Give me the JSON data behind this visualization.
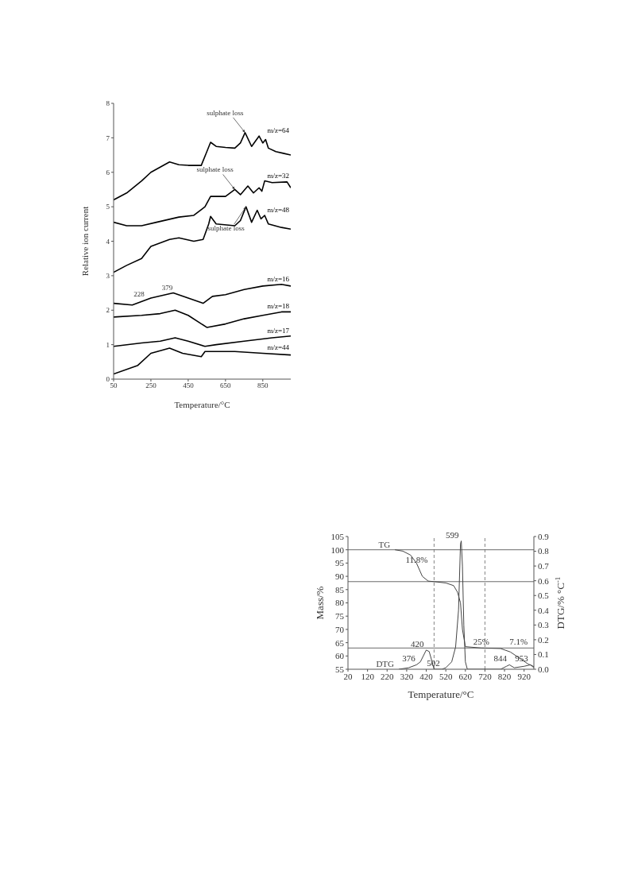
{
  "chart_data": [
    {
      "type": "line",
      "xlabel": "Temperature/°C",
      "ylabel": "Relative ion current",
      "xlim": [
        50,
        1000
      ],
      "ylim": [
        0,
        8
      ],
      "xticks": [
        50,
        250,
        450,
        650,
        850
      ],
      "yticks": [
        0,
        1,
        2,
        3,
        4,
        5,
        6,
        7,
        8
      ],
      "marker": "none",
      "line_style": "solid",
      "series": [
        {
          "name": "m/z=64",
          "color": "#000000",
          "x": [
            50,
            120,
            200,
            250,
            300,
            350,
            400,
            450,
            520,
            550,
            570,
            600,
            650,
            700,
            730,
            755,
            790,
            830,
            850,
            865,
            880,
            920,
            960,
            1000
          ],
          "values": [
            5.2,
            5.4,
            5.75,
            6.0,
            6.15,
            6.3,
            6.22,
            6.2,
            6.2,
            6.6,
            6.87,
            6.75,
            6.72,
            6.7,
            6.85,
            7.15,
            6.75,
            7.05,
            6.85,
            6.95,
            6.7,
            6.6,
            6.55,
            6.5
          ]
        },
        {
          "name": "m/z=32",
          "color": "#000000",
          "x": [
            50,
            120,
            200,
            280,
            400,
            480,
            540,
            570,
            650,
            700,
            730,
            770,
            800,
            830,
            845,
            860,
            900,
            980,
            1000
          ],
          "values": [
            4.55,
            4.45,
            4.45,
            4.55,
            4.7,
            4.75,
            5.0,
            5.3,
            5.3,
            5.5,
            5.35,
            5.6,
            5.4,
            5.55,
            5.45,
            5.75,
            5.7,
            5.72,
            5.55
          ]
        },
        {
          "name": "m/z=48",
          "color": "#000000",
          "x": [
            50,
            120,
            200,
            250,
            350,
            400,
            480,
            530,
            560,
            570,
            600,
            700,
            730,
            760,
            790,
            820,
            840,
            860,
            880,
            950,
            1000
          ],
          "values": [
            3.1,
            3.3,
            3.5,
            3.85,
            4.05,
            4.1,
            4.0,
            4.05,
            4.5,
            4.72,
            4.5,
            4.45,
            4.6,
            5.0,
            4.55,
            4.9,
            4.65,
            4.75,
            4.5,
            4.4,
            4.35
          ]
        },
        {
          "name": "m/z=16",
          "color": "#000000",
          "x": [
            50,
            150,
            250,
            370,
            450,
            530,
            580,
            650,
            750,
            850,
            950,
            1000
          ],
          "values": [
            2.2,
            2.15,
            2.35,
            2.5,
            2.35,
            2.2,
            2.4,
            2.45,
            2.6,
            2.7,
            2.75,
            2.7
          ]
        },
        {
          "name": "m/z=18",
          "color": "#000000",
          "x": [
            50,
            200,
            300,
            380,
            450,
            550,
            650,
            750,
            850,
            950,
            1000
          ],
          "values": [
            1.8,
            1.85,
            1.9,
            2.0,
            1.85,
            1.5,
            1.6,
            1.75,
            1.85,
            1.95,
            1.95
          ]
        },
        {
          "name": "m/z=17",
          "color": "#000000",
          "x": [
            50,
            200,
            300,
            380,
            450,
            540,
            600,
            750,
            900,
            1000
          ],
          "values": [
            0.95,
            1.05,
            1.1,
            1.2,
            1.1,
            0.95,
            1.0,
            1.1,
            1.2,
            1.25
          ]
        },
        {
          "name": "m/z=44",
          "color": "#000000",
          "x": [
            50,
            180,
            250,
            350,
            420,
            520,
            540,
            700,
            850,
            1000
          ],
          "values": [
            0.15,
            0.4,
            0.75,
            0.9,
            0.75,
            0.65,
            0.8,
            0.8,
            0.75,
            0.7
          ]
        }
      ],
      "annotations": [
        {
          "text": "sulphate loss",
          "x": 755,
          "y": 7.15
        },
        {
          "text": "sulphate loss",
          "x": 760,
          "y": 5.0
        },
        {
          "text": "sulphate loss",
          "x": 700,
          "y": 5.5
        },
        {
          "text": "228",
          "x": 228,
          "y": 2.3
        },
        {
          "text": "379",
          "x": 379,
          "y": 2.5
        }
      ]
    },
    {
      "type": "line",
      "xlabel": "Temperature/°C",
      "ylabel": "Mass/%",
      "y2label": "DTG/% °C$^{-1}$",
      "xlim": [
        20,
        970
      ],
      "ylim": [
        55,
        105
      ],
      "y2lim": [
        0,
        0.9
      ],
      "xticks": [
        20,
        120,
        220,
        320,
        420,
        520,
        620,
        720,
        820,
        920
      ],
      "yticks": [
        55,
        60,
        65,
        70,
        75,
        80,
        85,
        90,
        95,
        100,
        105
      ],
      "y2ticks": [
        {
          "value": 0,
          "label": "0.0"
        },
        {
          "value": 0.1,
          "label": "0.1"
        },
        {
          "value": 0.2,
          "label": "0.2"
        },
        {
          "value": 0.3,
          "label": "0.3"
        },
        {
          "value": 0.4,
          "label": "0.4"
        },
        {
          "value": 0.5,
          "label": "0.5"
        },
        {
          "value": 0.6,
          "label": "0.6"
        },
        {
          "value": 0.7,
          "label": "0.7"
        },
        {
          "value": 0.8,
          "label": "0.8"
        },
        {
          "value": 0.9,
          "label": "0.9"
        }
      ],
      "marker": "none",
      "line_style": "solid",
      "series": [
        {
          "name": "TG",
          "color": "#444444",
          "x": [
            260,
            300,
            340,
            370,
            400,
            430,
            460,
            520,
            560,
            580,
            595,
            605,
            620,
            700,
            800,
            850,
            900,
            940,
            970
          ],
          "values": [
            100,
            99.5,
            98,
            95,
            90,
            88.2,
            88,
            87.5,
            86.5,
            84,
            80,
            70,
            63.5,
            63,
            62.8,
            61.5,
            59,
            57,
            56
          ]
        },
        {
          "name": "DTG",
          "color": "#444444",
          "axis": "y2",
          "x": [
            280,
            330,
            370,
            390,
            420,
            435,
            450,
            460,
            500,
            520,
            550,
            570,
            585,
            595,
            599,
            605,
            612,
            620,
            630,
            800,
            830,
            845,
            870,
            920,
            953,
            970
          ],
          "values": [
            0,
            0.01,
            0.03,
            0.05,
            0.13,
            0.12,
            0.05,
            0,
            0,
            0.01,
            0.05,
            0.15,
            0.4,
            0.85,
            0.87,
            0.7,
            0.3,
            0.05,
            0,
            0,
            0.02,
            0.03,
            0.01,
            0.02,
            0.03,
            0.01
          ]
        }
      ],
      "ref_lines": [
        {
          "axis": "y",
          "value": 100,
          "color": "#444444",
          "line_style": "solid"
        },
        {
          "axis": "y",
          "value": 88,
          "color": "#444444",
          "line_style": "solid"
        },
        {
          "axis": "y",
          "value": 63,
          "color": "#444444",
          "line_style": "solid"
        },
        {
          "axis": "x",
          "value": 460,
          "color": "#666666",
          "line_style": "dashed"
        },
        {
          "axis": "x",
          "value": 720,
          "color": "#666666",
          "line_style": "dashed"
        }
      ],
      "annotations": [
        {
          "text": "11.8%",
          "x": 440,
          "y": 94
        },
        {
          "text": "25%",
          "x": 755,
          "y": 63
        },
        {
          "text": "7.1%",
          "x": 950,
          "y": 63
        },
        {
          "text": "376",
          "x": 376,
          "y": 56.7
        },
        {
          "text": "420",
          "x": 420,
          "y": 62.2
        },
        {
          "text": "502",
          "x": 502,
          "y": 55
        },
        {
          "text": "599",
          "x": 599,
          "y": 103.3
        },
        {
          "text": "844",
          "x": 844,
          "y": 56.7
        },
        {
          "text": "953",
          "x": 953,
          "y": 56.7
        }
      ]
    }
  ]
}
